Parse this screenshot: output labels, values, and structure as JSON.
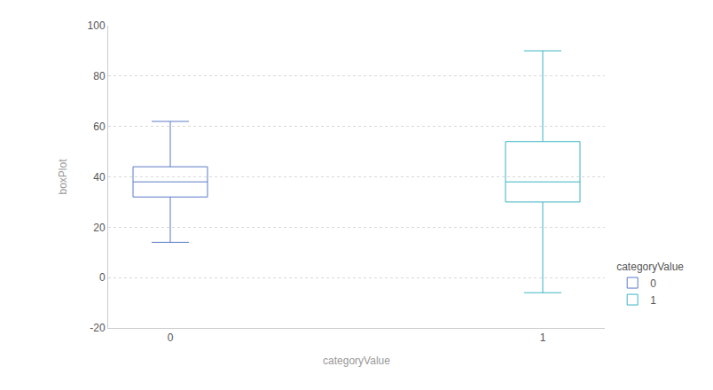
{
  "chart_data": {
    "type": "box",
    "x_label": "categoryValue",
    "y_label": "boxPlot",
    "legend_title": "categoryValue",
    "legend": "bottom right",
    "categories": [
      "0",
      "1"
    ],
    "series": [
      {
        "name": "0",
        "color": "#5b7bc4",
        "min": 14,
        "q1": 32,
        "median": 38,
        "q3": 44,
        "max": 62
      },
      {
        "name": "1",
        "color": "#3cb4c4",
        "min": -6,
        "q1": 30,
        "median": 38,
        "q3": 54,
        "max": 90
      }
    ],
    "ylim": [
      -20,
      100
    ],
    "yticks": [
      -20,
      0,
      20,
      40,
      60,
      80,
      100
    ],
    "grid": true
  }
}
